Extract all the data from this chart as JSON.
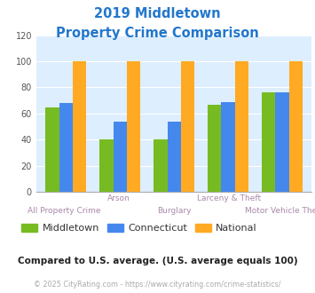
{
  "title_line1": "2019 Middletown",
  "title_line2": "Property Crime Comparison",
  "categories": [
    "All Property Crime",
    "Arson",
    "Burglary",
    "Larceny & Theft",
    "Motor Vehicle Theft"
  ],
  "top_labels": [
    "",
    "Arson",
    "",
    "Larceny & Theft",
    ""
  ],
  "bot_labels": [
    "All Property Crime",
    "",
    "Burglary",
    "",
    "Motor Vehicle Theft"
  ],
  "middletown": [
    65,
    40,
    40,
    67,
    76
  ],
  "connecticut": [
    68,
    54,
    54,
    69,
    76
  ],
  "national": [
    100,
    100,
    100,
    100,
    100
  ],
  "colors": {
    "middletown": "#77bb22",
    "connecticut": "#4488ee",
    "national": "#ffaa22"
  },
  "ylim": [
    0,
    120
  ],
  "yticks": [
    0,
    20,
    40,
    60,
    80,
    100,
    120
  ],
  "bg_color": "#ddeeff",
  "title_color": "#2277cc",
  "xlabel_color": "#aa88aa",
  "legend_labels": [
    "Middletown",
    "Connecticut",
    "National"
  ],
  "legend_text_color": "#333333",
  "subtitle_text": "Compared to U.S. average. (U.S. average equals 100)",
  "footer_text": "© 2025 CityRating.com - https://www.cityrating.com/crime-statistics/",
  "subtitle_color": "#222222",
  "footer_color": "#aaaaaa"
}
